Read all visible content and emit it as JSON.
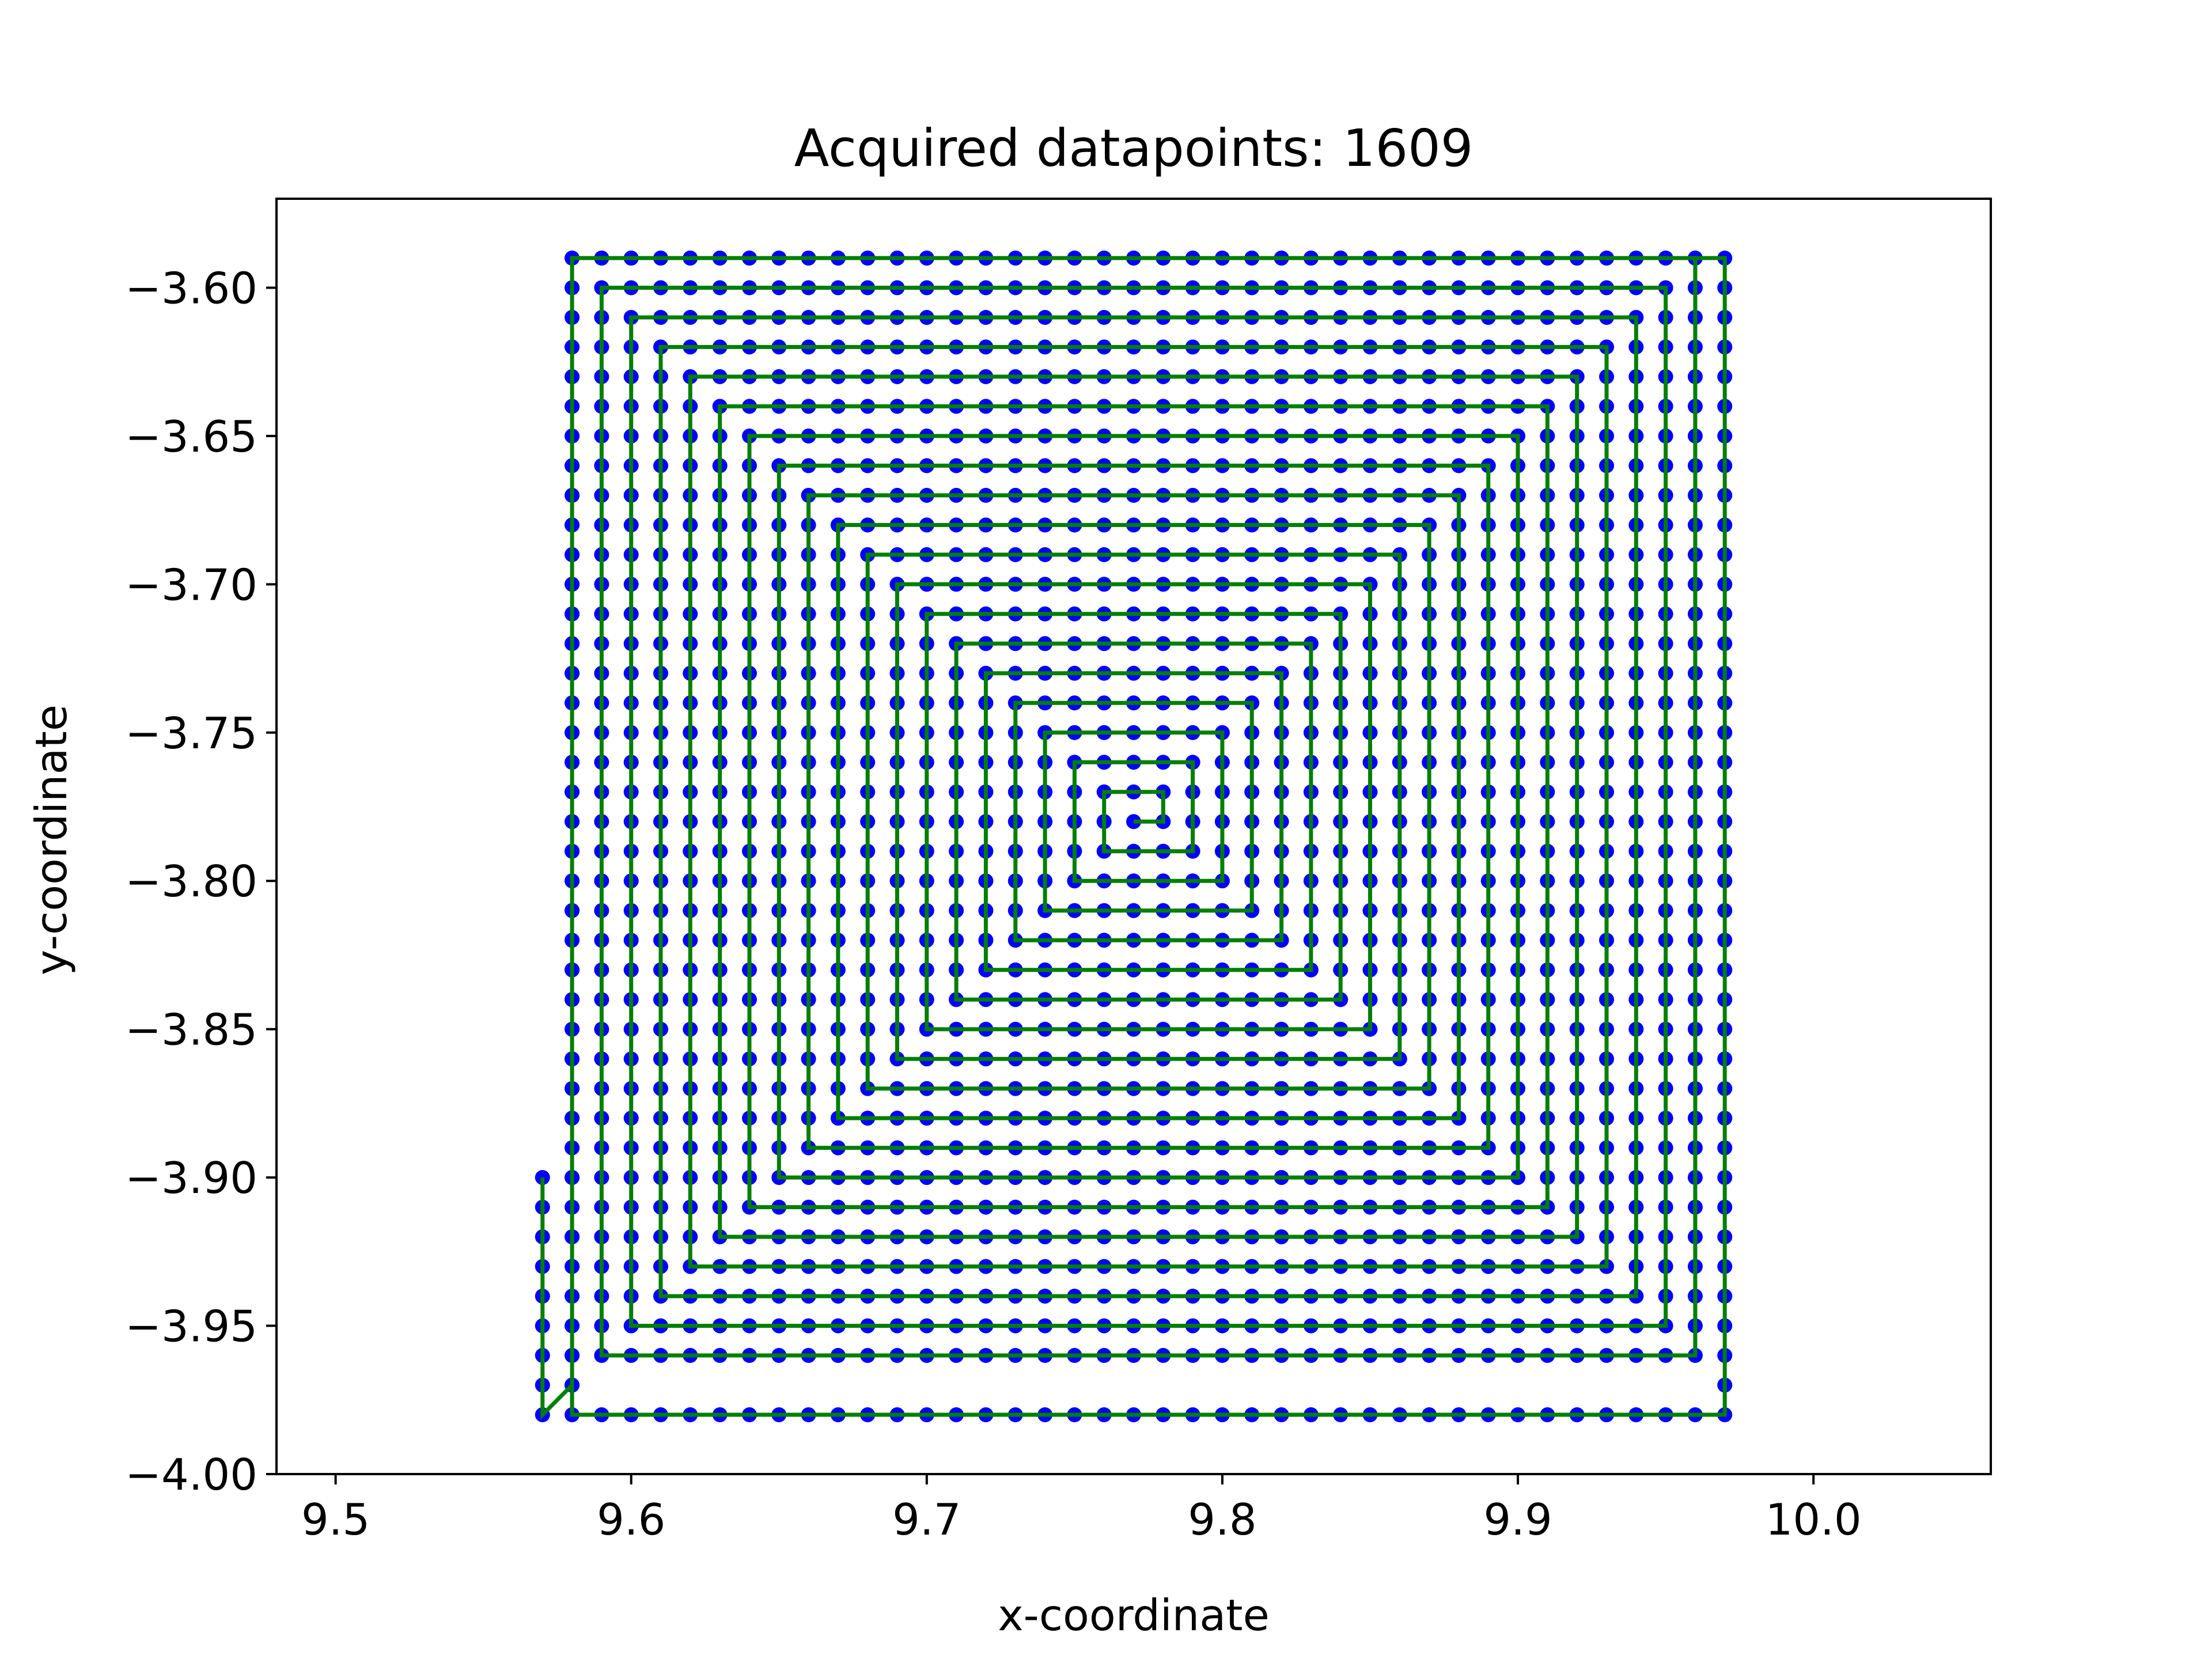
{
  "chart_data": {
    "type": "scatter",
    "title": "Acquired datapoints: 1609",
    "xlabel": "x-coordinate",
    "ylabel": "y-coordinate",
    "xlim": [
      9.48,
      10.06
    ],
    "ylim": [
      -4.0,
      -3.57
    ],
    "xticks": [
      9.5,
      9.6,
      9.7,
      9.8,
      9.9,
      10.0
    ],
    "xtick_labels": [
      "9.5",
      "9.6",
      "9.7",
      "9.8",
      "9.9",
      "10.0"
    ],
    "yticks": [
      -3.6,
      -3.65,
      -3.7,
      -3.75,
      -3.8,
      -3.85,
      -3.9,
      -3.95,
      -4.0
    ],
    "ytick_labels": [
      "−3.60",
      "−3.65",
      "−3.70",
      "−3.75",
      "−3.80",
      "−3.85",
      "−3.90",
      "−3.95",
      "−4.00"
    ],
    "grid": false,
    "grid_step": 0.01,
    "spiral_center": [
      9.77,
      -3.78
    ],
    "spiral_rings": 19,
    "outer_frame": {
      "x": [
        9.57,
        9.97
      ],
      "y": [
        -3.98,
        -3.59
      ]
    },
    "spiral_tail": [
      [
        9.57,
        -3.98
      ],
      [
        9.57,
        -3.9
      ]
    ],
    "series": [
      {
        "kind": "markers",
        "color": "#0000ff"
      },
      {
        "kind": "path",
        "color": "#007f00"
      }
    ]
  }
}
